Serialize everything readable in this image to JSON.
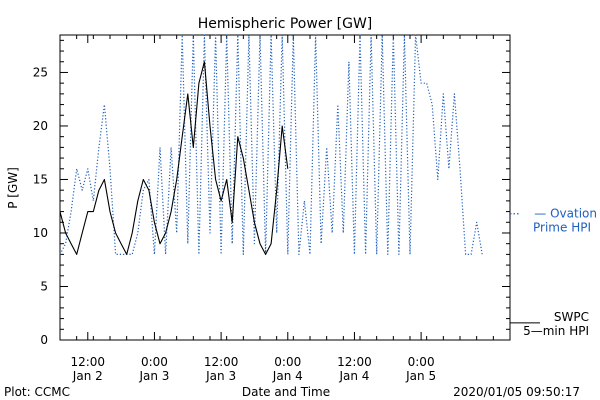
{
  "chart_data": {
    "type": "line",
    "title": "Hemispheric Power [GW]",
    "ylabel": "P [GW]",
    "xlabel": "Date and Time",
    "ylim": [
      0,
      28.5
    ],
    "yticks": [
      0,
      5,
      10,
      15,
      20,
      25
    ],
    "xlim": [
      "2020-01-02T07:00",
      "2020-01-05T16:00"
    ],
    "xticks": [
      {
        "time": "2020-01-02T12:00",
        "line1": "12:00",
        "line2": "Jan 2"
      },
      {
        "time": "2020-01-03T00:00",
        "line1": "0:00",
        "line2": "Jan 3"
      },
      {
        "time": "2020-01-03T12:00",
        "line1": "12:00",
        "line2": "Jan 3"
      },
      {
        "time": "2020-01-04T00:00",
        "line1": "0:00",
        "line2": "Jan 4"
      },
      {
        "time": "2020-01-04T12:00",
        "line1": "12:00",
        "line2": "Jan 4"
      },
      {
        "time": "2020-01-05T00:00",
        "line1": "0:00",
        "line2": "Jan 5"
      }
    ],
    "grid": false,
    "series": [
      {
        "name": "Ovation Prime HPI",
        "legend_lines": [
          "— Ovation",
          "Prime HPI"
        ],
        "color": "#1f5fbf",
        "style": "dotted",
        "points": [
          [
            "2020-01-02T07:00",
            8
          ],
          [
            "2020-01-02T08:00",
            9
          ],
          [
            "2020-01-02T09:00",
            12
          ],
          [
            "2020-01-02T10:00",
            16
          ],
          [
            "2020-01-02T11:00",
            14
          ],
          [
            "2020-01-02T12:00",
            16
          ],
          [
            "2020-01-02T13:00",
            13
          ],
          [
            "2020-01-02T14:00",
            18
          ],
          [
            "2020-01-02T15:00",
            22
          ],
          [
            "2020-01-02T16:00",
            16
          ],
          [
            "2020-01-02T17:00",
            8
          ],
          [
            "2020-01-02T18:00",
            8
          ],
          [
            "2020-01-02T19:00",
            8
          ],
          [
            "2020-01-02T20:00",
            8
          ],
          [
            "2020-01-02T21:00",
            10
          ],
          [
            "2020-01-02T22:00",
            14
          ],
          [
            "2020-01-02T23:00",
            15
          ],
          [
            "2020-01-03T00:00",
            8
          ],
          [
            "2020-01-03T01:00",
            18
          ],
          [
            "2020-01-03T02:00",
            8
          ],
          [
            "2020-01-03T03:00",
            18
          ],
          [
            "2020-01-03T04:00",
            10
          ],
          [
            "2020-01-03T05:00",
            28.5
          ],
          [
            "2020-01-03T06:00",
            9
          ],
          [
            "2020-01-03T07:00",
            28.5
          ],
          [
            "2020-01-03T08:00",
            8
          ],
          [
            "2020-01-03T09:00",
            28.5
          ],
          [
            "2020-01-03T10:00",
            10
          ],
          [
            "2020-01-03T11:00",
            28.5
          ],
          [
            "2020-01-03T12:00",
            8
          ],
          [
            "2020-01-03T13:00",
            28.5
          ],
          [
            "2020-01-03T14:00",
            9
          ],
          [
            "2020-01-03T15:00",
            28.5
          ],
          [
            "2020-01-03T16:00",
            8
          ],
          [
            "2020-01-03T17:00",
            28.5
          ],
          [
            "2020-01-03T18:00",
            9
          ],
          [
            "2020-01-03T19:00",
            28.5
          ],
          [
            "2020-01-03T20:00",
            8
          ],
          [
            "2020-01-03T21:00",
            28.5
          ],
          [
            "2020-01-03T22:00",
            10
          ],
          [
            "2020-01-03T23:00",
            28.5
          ],
          [
            "2020-01-04T00:00",
            8
          ],
          [
            "2020-01-04T01:00",
            28.5
          ],
          [
            "2020-01-04T02:00",
            8
          ],
          [
            "2020-01-04T03:00",
            13
          ],
          [
            "2020-01-04T04:00",
            8
          ],
          [
            "2020-01-04T05:00",
            28.5
          ],
          [
            "2020-01-04T06:00",
            9
          ],
          [
            "2020-01-04T07:00",
            18
          ],
          [
            "2020-01-04T08:00",
            10
          ],
          [
            "2020-01-04T09:00",
            22
          ],
          [
            "2020-01-04T10:00",
            10
          ],
          [
            "2020-01-04T11:00",
            26
          ],
          [
            "2020-01-04T12:00",
            8
          ],
          [
            "2020-01-04T13:00",
            28.5
          ],
          [
            "2020-01-04T14:00",
            8
          ],
          [
            "2020-01-04T15:00",
            28.5
          ],
          [
            "2020-01-04T16:00",
            8
          ],
          [
            "2020-01-04T17:00",
            28.5
          ],
          [
            "2020-01-04T18:00",
            8
          ],
          [
            "2020-01-04T19:00",
            28.5
          ],
          [
            "2020-01-04T20:00",
            8
          ],
          [
            "2020-01-04T21:00",
            28.5
          ],
          [
            "2020-01-04T22:00",
            8
          ],
          [
            "2020-01-04T23:00",
            28.5
          ],
          [
            "2020-01-05T00:00",
            24
          ],
          [
            "2020-01-05T01:00",
            24
          ],
          [
            "2020-01-05T02:00",
            22
          ],
          [
            "2020-01-05T03:00",
            15
          ],
          [
            "2020-01-05T04:00",
            23
          ],
          [
            "2020-01-05T05:00",
            16
          ],
          [
            "2020-01-05T06:00",
            23
          ],
          [
            "2020-01-05T07:00",
            16
          ],
          [
            "2020-01-05T08:00",
            8
          ],
          [
            "2020-01-05T09:00",
            8
          ],
          [
            "2020-01-05T10:00",
            11
          ],
          [
            "2020-01-05T11:00",
            8
          ]
        ]
      },
      {
        "name": "SWPC 5-min HPI",
        "legend_lines": [
          "SWPC",
          "5—min HPI"
        ],
        "color": "#000000",
        "style": "solid",
        "points": [
          [
            "2020-01-02T07:00",
            12
          ],
          [
            "2020-01-02T08:00",
            10
          ],
          [
            "2020-01-02T09:00",
            9
          ],
          [
            "2020-01-02T10:00",
            8
          ],
          [
            "2020-01-02T11:00",
            10
          ],
          [
            "2020-01-02T12:00",
            12
          ],
          [
            "2020-01-02T13:00",
            12
          ],
          [
            "2020-01-02T14:00",
            14
          ],
          [
            "2020-01-02T15:00",
            15
          ],
          [
            "2020-01-02T16:00",
            12
          ],
          [
            "2020-01-02T17:00",
            10
          ],
          [
            "2020-01-02T18:00",
            9
          ],
          [
            "2020-01-02T19:00",
            8
          ],
          [
            "2020-01-02T20:00",
            10
          ],
          [
            "2020-01-02T21:00",
            13
          ],
          [
            "2020-01-02T22:00",
            15
          ],
          [
            "2020-01-02T23:00",
            14
          ],
          [
            "2020-01-03T00:00",
            11
          ],
          [
            "2020-01-03T01:00",
            9
          ],
          [
            "2020-01-03T02:00",
            10
          ],
          [
            "2020-01-03T03:00",
            12
          ],
          [
            "2020-01-03T04:00",
            15
          ],
          [
            "2020-01-03T05:00",
            19
          ],
          [
            "2020-01-03T06:00",
            23
          ],
          [
            "2020-01-03T07:00",
            18
          ],
          [
            "2020-01-03T08:00",
            24
          ],
          [
            "2020-01-03T09:00",
            26
          ],
          [
            "2020-01-03T10:00",
            20
          ],
          [
            "2020-01-03T11:00",
            15
          ],
          [
            "2020-01-03T12:00",
            13
          ],
          [
            "2020-01-03T13:00",
            15
          ],
          [
            "2020-01-03T14:00",
            11
          ],
          [
            "2020-01-03T15:00",
            19
          ],
          [
            "2020-01-03T16:00",
            17
          ],
          [
            "2020-01-03T17:00",
            14
          ],
          [
            "2020-01-03T18:00",
            11
          ],
          [
            "2020-01-03T19:00",
            9
          ],
          [
            "2020-01-03T20:00",
            8
          ],
          [
            "2020-01-03T21:00",
            9
          ],
          [
            "2020-01-03T22:00",
            14
          ],
          [
            "2020-01-03T23:00",
            20
          ],
          [
            "2020-01-04T00:00",
            16
          ]
        ]
      }
    ]
  },
  "footer": {
    "left": "Plot: CCMC",
    "timestamp": "2020/01/05 09:50:17"
  }
}
